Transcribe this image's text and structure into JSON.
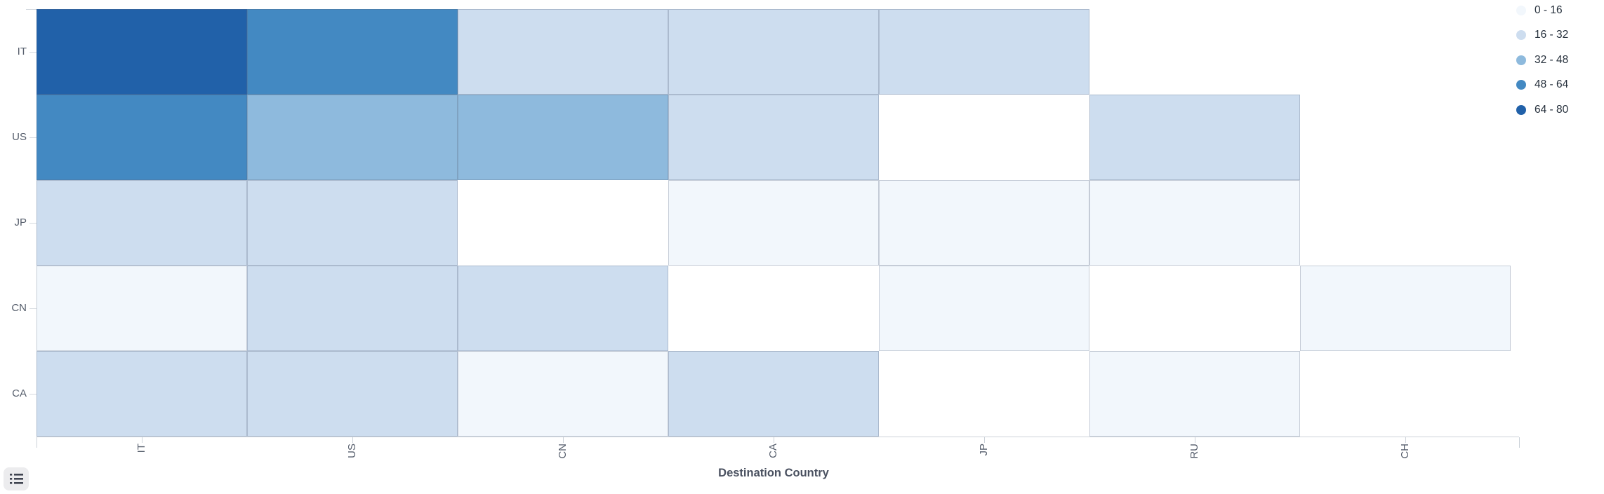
{
  "chart_data": {
    "type": "heatmap",
    "title": "",
    "xlabel": "Destination Country",
    "ylabel": "",
    "x_categories": [
      "IT",
      "US",
      "CN",
      "CA",
      "JP",
      "RU",
      "CH"
    ],
    "y_categories": [
      "IT",
      "US",
      "JP",
      "CN",
      "CA"
    ],
    "legend_position": "top-right",
    "grid": "cell-borders-only",
    "legend": [
      {
        "label": "0 - 16",
        "color": "#f2f7fc"
      },
      {
        "label": "16 - 32",
        "color": "#cdddef"
      },
      {
        "label": "32 - 48",
        "color": "#8ebadd"
      },
      {
        "label": "48 - 64",
        "color": "#4389c2"
      },
      {
        "label": "64 - 80",
        "color": "#2161a9"
      }
    ],
    "cells_note": "value bucket per [origin row][destination column]; null = no data cell",
    "cells": [
      [
        "64 - 80",
        "48 - 64",
        "16 - 32",
        "16 - 32",
        "16 - 32",
        null,
        null
      ],
      [
        "48 - 64",
        "32 - 48",
        "32 - 48",
        "16 - 32",
        null,
        "16 - 32",
        null
      ],
      [
        "16 - 32",
        "16 - 32",
        null,
        "0 - 16",
        "0 - 16",
        "0 - 16",
        null
      ],
      [
        "0 - 16",
        "16 - 32",
        "16 - 32",
        null,
        "0 - 16",
        null,
        "0 - 16"
      ],
      [
        "16 - 32",
        "16 - 32",
        "0 - 16",
        "16 - 32",
        null,
        "0 - 16",
        null
      ]
    ]
  },
  "toolbar": {
    "data_view_button": "data-view"
  },
  "colors": {
    "axis_line": "#ccd2d9",
    "axis_label": "#565e6c",
    "axis_title": "#4a5160",
    "legend_text": "#26303c",
    "cell_border": "rgba(92,106,128,0.45)",
    "toolbox_bg": "#ececee",
    "toolbox_icon": "#3f4450"
  }
}
